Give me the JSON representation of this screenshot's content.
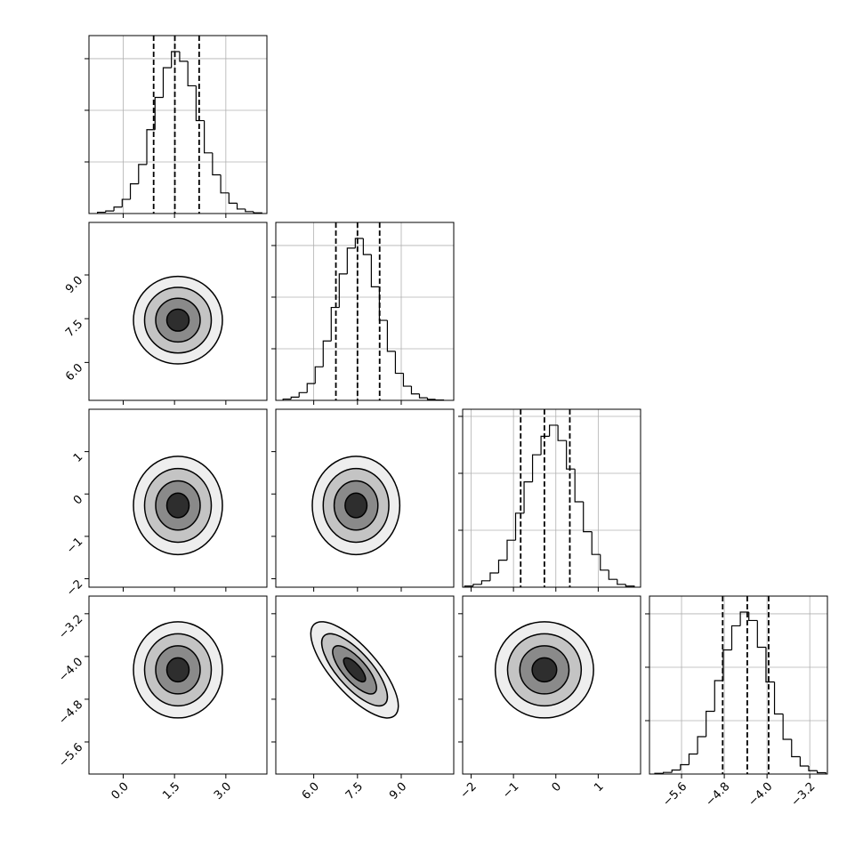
{
  "chart_data": {
    "type": "corner",
    "variables": [
      {
        "range": [
          -1.0,
          4.2
        ],
        "ticks": [
          {
            "value": 0,
            "label": "0.0"
          },
          {
            "value": 1.5,
            "label": "1.5"
          },
          {
            "value": 3,
            "label": "3.0"
          }
        ]
      },
      {
        "range": [
          4.7,
          10.8
        ],
        "ticks": [
          {
            "value": 6,
            "label": "6.0"
          },
          {
            "value": 7.5,
            "label": "7.5"
          },
          {
            "value": 9,
            "label": "9.0"
          }
        ]
      },
      {
        "range": [
          -2.2,
          2.0
        ],
        "ticks": [
          {
            "value": -2,
            "label": "−2"
          },
          {
            "value": -1,
            "label": "−1"
          },
          0,
          1
        ]
      },
      {
        "range": [
          -6.2,
          -2.87
        ],
        "ticks": [
          {
            "value": -5.6,
            "label": "−5.6"
          },
          {
            "value": -4.8,
            "label": "−4.8"
          },
          {
            "value": -4,
            "label": "−4.0"
          },
          {
            "value": -3.2,
            "label": "−3.2"
          }
        ]
      }
    ],
    "histograms": [
      {
        "bins": [
          -0.75,
          -0.51,
          -0.27,
          -0.03,
          0.21,
          0.45,
          0.69,
          0.93,
          1.17,
          1.41,
          1.65,
          1.89,
          2.13,
          2.37,
          2.61,
          2.85,
          3.09,
          3.33,
          3.57,
          3.81,
          4.05
        ],
        "values": [
          10,
          20,
          50,
          110,
          230,
          380,
          650,
          900,
          1130,
          1255,
          1180,
          990,
          720,
          470,
          300,
          160,
          80,
          35,
          15,
          5
        ],
        "ylim": [
          0,
          1379
        ],
        "yticks": [
          400,
          800,
          1200
        ],
        "quantiles": [
          0.89,
          1.51,
          2.22
        ]
      },
      {
        "bins": [
          4.95,
          5.225,
          5.5,
          5.775,
          6.05,
          6.325,
          6.6,
          6.875,
          7.15,
          7.425,
          7.7,
          7.975,
          8.25,
          8.525,
          8.8,
          9.075,
          9.35,
          9.625,
          9.9,
          10.175,
          10.45
        ],
        "values": [
          10,
          25,
          60,
          130,
          260,
          460,
          720,
          980,
          1180,
          1255,
          1130,
          880,
          620,
          380,
          210,
          110,
          50,
          20,
          8,
          3
        ],
        "ylim": [
          0,
          1379
        ],
        "yticks": [
          400,
          800,
          1200
        ],
        "quantiles": [
          6.76,
          7.5,
          8.26
        ]
      },
      {
        "bins": [
          -2.15,
          -1.95,
          -1.75,
          -1.55,
          -1.35,
          -1.15,
          -0.95,
          -0.75,
          -0.55,
          -0.35,
          -0.15,
          0.05,
          0.25,
          0.45,
          0.65,
          0.85,
          1.05,
          1.25,
          1.45,
          1.65,
          1.85
        ],
        "values": [
          8,
          20,
          45,
          100,
          190,
          330,
          520,
          740,
          930,
          1060,
          1138,
          1030,
          830,
          600,
          390,
          230,
          120,
          55,
          20,
          8
        ],
        "ylim": [
          0,
          1250
        ],
        "yticks": [
          400,
          800,
          1200
        ],
        "quantiles": [
          -0.83,
          -0.27,
          0.33
        ]
      },
      {
        "bins": [
          -6.1,
          -5.94,
          -5.78,
          -5.62,
          -5.46,
          -5.3,
          -5.14,
          -4.98,
          -4.82,
          -4.66,
          -4.5,
          -4.34,
          -4.18,
          -4.02,
          -3.86,
          -3.7,
          -3.54,
          -3.38,
          -3.22,
          -3.06,
          -2.9
        ],
        "values": [
          5,
          12,
          30,
          70,
          150,
          280,
          470,
          700,
          930,
          1110,
          1213,
          1150,
          950,
          690,
          450,
          260,
          130,
          60,
          25,
          10
        ],
        "ylim": [
          0,
          1333
        ],
        "yticks": [
          400,
          800,
          1200
        ],
        "quantiles": [
          -4.83,
          -4.37,
          -3.97
        ]
      }
    ],
    "panels": [
      {
        "x": 0,
        "y": 1,
        "mean": [
          1.6,
          7.45
        ],
        "sigma": [
          0.65,
          0.75
        ],
        "rho": 0
      },
      {
        "x": 0,
        "y": 2,
        "mean": [
          1.6,
          -0.27
        ],
        "sigma": [
          0.65,
          0.58
        ],
        "rho": 0
      },
      {
        "x": 1,
        "y": 2,
        "mean": [
          7.45,
          -0.27
        ],
        "sigma": [
          0.75,
          0.58
        ],
        "rho": 0
      },
      {
        "x": 0,
        "y": 3,
        "mean": [
          1.6,
          -4.25
        ],
        "sigma": [
          0.65,
          0.45
        ],
        "rho": 0
      },
      {
        "x": 1,
        "y": 3,
        "mean": [
          7.4,
          -4.25
        ],
        "sigma": [
          0.75,
          0.45
        ],
        "rho": -0.75
      },
      {
        "x": 2,
        "y": 3,
        "mean": [
          -0.27,
          -4.25
        ],
        "sigma": [
          0.58,
          0.45
        ],
        "rho": 0
      }
    ],
    "levels": [
      2,
      1.5,
      1,
      0.5
    ],
    "contour_fills": [
      "#eeeeee",
      "#c4c4c4",
      "#8a8a8a",
      "#2e2e2e"
    ],
    "color": "#000000",
    "grid": true
  }
}
